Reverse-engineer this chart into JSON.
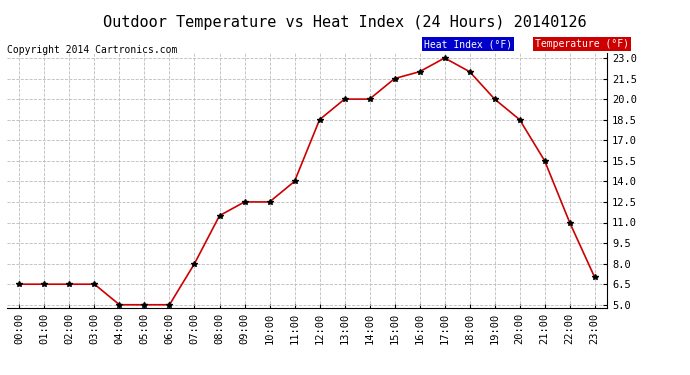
{
  "title": "Outdoor Temperature vs Heat Index (24 Hours) 20140126",
  "copyright": "Copyright 2014 Cartronics.com",
  "x_labels": [
    "00:00",
    "01:00",
    "02:00",
    "03:00",
    "04:00",
    "05:00",
    "06:00",
    "07:00",
    "08:00",
    "09:00",
    "10:00",
    "11:00",
    "12:00",
    "13:00",
    "14:00",
    "15:00",
    "16:00",
    "17:00",
    "18:00",
    "19:00",
    "20:00",
    "21:00",
    "22:00",
    "23:00"
  ],
  "temperature_values": [
    6.5,
    6.5,
    6.5,
    6.5,
    5.0,
    5.0,
    5.0,
    8.0,
    11.5,
    12.5,
    12.5,
    14.0,
    18.5,
    20.0,
    20.0,
    21.5,
    22.0,
    23.0,
    22.0,
    20.0,
    18.5,
    15.5,
    11.0,
    7.0
  ],
  "ylim_min": 4.8,
  "ylim_max": 23.4,
  "yticks": [
    5.0,
    6.5,
    8.0,
    9.5,
    11.0,
    12.5,
    14.0,
    15.5,
    17.0,
    18.5,
    20.0,
    21.5,
    23.0
  ],
  "line_color": "#cc0000",
  "marker_color": "#000000",
  "bg_color": "#ffffff",
  "grid_color": "#bbbbbb",
  "title_fontsize": 11,
  "copyright_fontsize": 7,
  "tick_fontsize": 7.5,
  "legend_heat_index_bg": "#0000cc",
  "legend_temp_bg": "#cc0000",
  "legend_text_color": "#ffffff",
  "legend_heat_index_label": "Heat Index (°F)",
  "legend_temp_label": "Temperature (°F)"
}
